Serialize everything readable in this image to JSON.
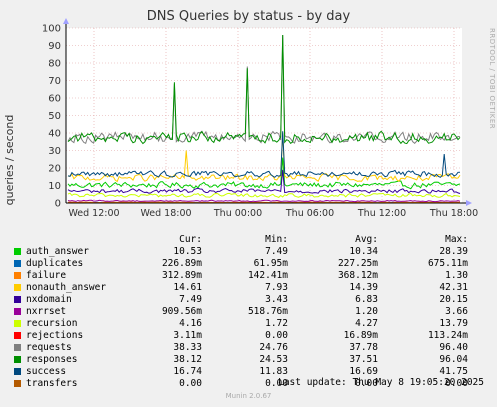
{
  "chart_data": {
    "type": "line",
    "title": "DNS Queries by status - by day",
    "ylabel": "queries / second",
    "xlabel": "",
    "ylim": [
      0,
      100
    ],
    "y_ticks": [
      "0",
      "10",
      "20",
      "30",
      "40",
      "50",
      "60",
      "70",
      "80",
      "90",
      "100"
    ],
    "x_ticks": [
      "Wed 12:00",
      "Wed 18:00",
      "Thu 00:00",
      "Thu 06:00",
      "Thu 12:00",
      "Thu 18:00"
    ],
    "grid": true,
    "side_label": "RRDTOOL / TOBI OETIKER",
    "legend_headers": {
      "cur": "Cur:",
      "min": "Min:",
      "avg": "Avg:",
      "max": "Max:"
    },
    "series": [
      {
        "name": "auth_answer",
        "color": "#00cc00",
        "cur": "10.53",
        "min": "7.49",
        "avg": "10.34",
        "max": "28.39",
        "level": 10.3,
        "noise": 2.5,
        "spikes": [
          [
            0.55,
            26
          ]
        ]
      },
      {
        "name": "duplicates",
        "color": "#0066b3",
        "cur": "226.89m",
        "min": "61.95m",
        "avg": "227.25m",
        "max": "675.11m",
        "level": 0.23,
        "noise": 0.15,
        "spikes": []
      },
      {
        "name": "failure",
        "color": "#ff8000",
        "cur": "312.89m",
        "min": "142.41m",
        "avg": "368.12m",
        "max": "1.30",
        "level": 0.37,
        "noise": 0.2,
        "spikes": []
      },
      {
        "name": "nonauth_answer",
        "color": "#ffcc00",
        "cur": "14.61",
        "min": "7.93",
        "avg": "14.39",
        "max": "42.31",
        "level": 14.4,
        "noise": 2.8,
        "spikes": [
          [
            0.3,
            30
          ],
          [
            0.55,
            40
          ]
        ]
      },
      {
        "name": "nxdomain",
        "color": "#330099",
        "cur": "7.49",
        "min": "3.43",
        "avg": "6.83",
        "max": "20.15",
        "level": 6.8,
        "noise": 1.8,
        "spikes": [
          [
            0.55,
            19
          ]
        ]
      },
      {
        "name": "nxrrset",
        "color": "#990099",
        "cur": "909.56m",
        "min": "518.76m",
        "avg": "1.20",
        "max": "3.66",
        "level": 1.2,
        "noise": 0.5,
        "spikes": []
      },
      {
        "name": "recursion",
        "color": "#ccff00",
        "cur": "4.16",
        "min": "1.72",
        "avg": "4.27",
        "max": "13.79",
        "level": 4.3,
        "noise": 1.6,
        "spikes": []
      },
      {
        "name": "rejections",
        "color": "#ff0000",
        "cur": "3.11m",
        "min": "0.00",
        "avg": "16.89m",
        "max": "113.24m",
        "level": 0.02,
        "noise": 0.02,
        "spikes": []
      },
      {
        "name": "requests",
        "color": "#808080",
        "cur": "38.33",
        "min": "24.76",
        "avg": "37.78",
        "max": "96.40",
        "level": 37.8,
        "noise": 4.5,
        "spikes": [
          [
            0.27,
            68
          ],
          [
            0.455,
            78
          ],
          [
            0.55,
            96
          ]
        ]
      },
      {
        "name": "responses",
        "color": "#008f00",
        "cur": "38.12",
        "min": "24.53",
        "avg": "37.51",
        "max": "96.04",
        "level": 37.5,
        "noise": 4.5,
        "spikes": [
          [
            0.27,
            69
          ],
          [
            0.455,
            77
          ],
          [
            0.55,
            96
          ]
        ]
      },
      {
        "name": "success",
        "color": "#00487d",
        "cur": "16.74",
        "min": "11.83",
        "avg": "16.69",
        "max": "41.75",
        "level": 16.7,
        "noise": 2.5,
        "spikes": [
          [
            0.55,
            41
          ],
          [
            0.96,
            28
          ]
        ]
      },
      {
        "name": "transfers",
        "color": "#b35a00",
        "cur": "0.00",
        "min": "0.00",
        "avg": "0.00",
        "max": "0.00",
        "level": 0,
        "noise": 0,
        "spikes": []
      }
    ]
  },
  "footer": {
    "last_update": "Last update: Thu May  8 19:05:20 2025",
    "munin": "Munin 2.0.67"
  }
}
